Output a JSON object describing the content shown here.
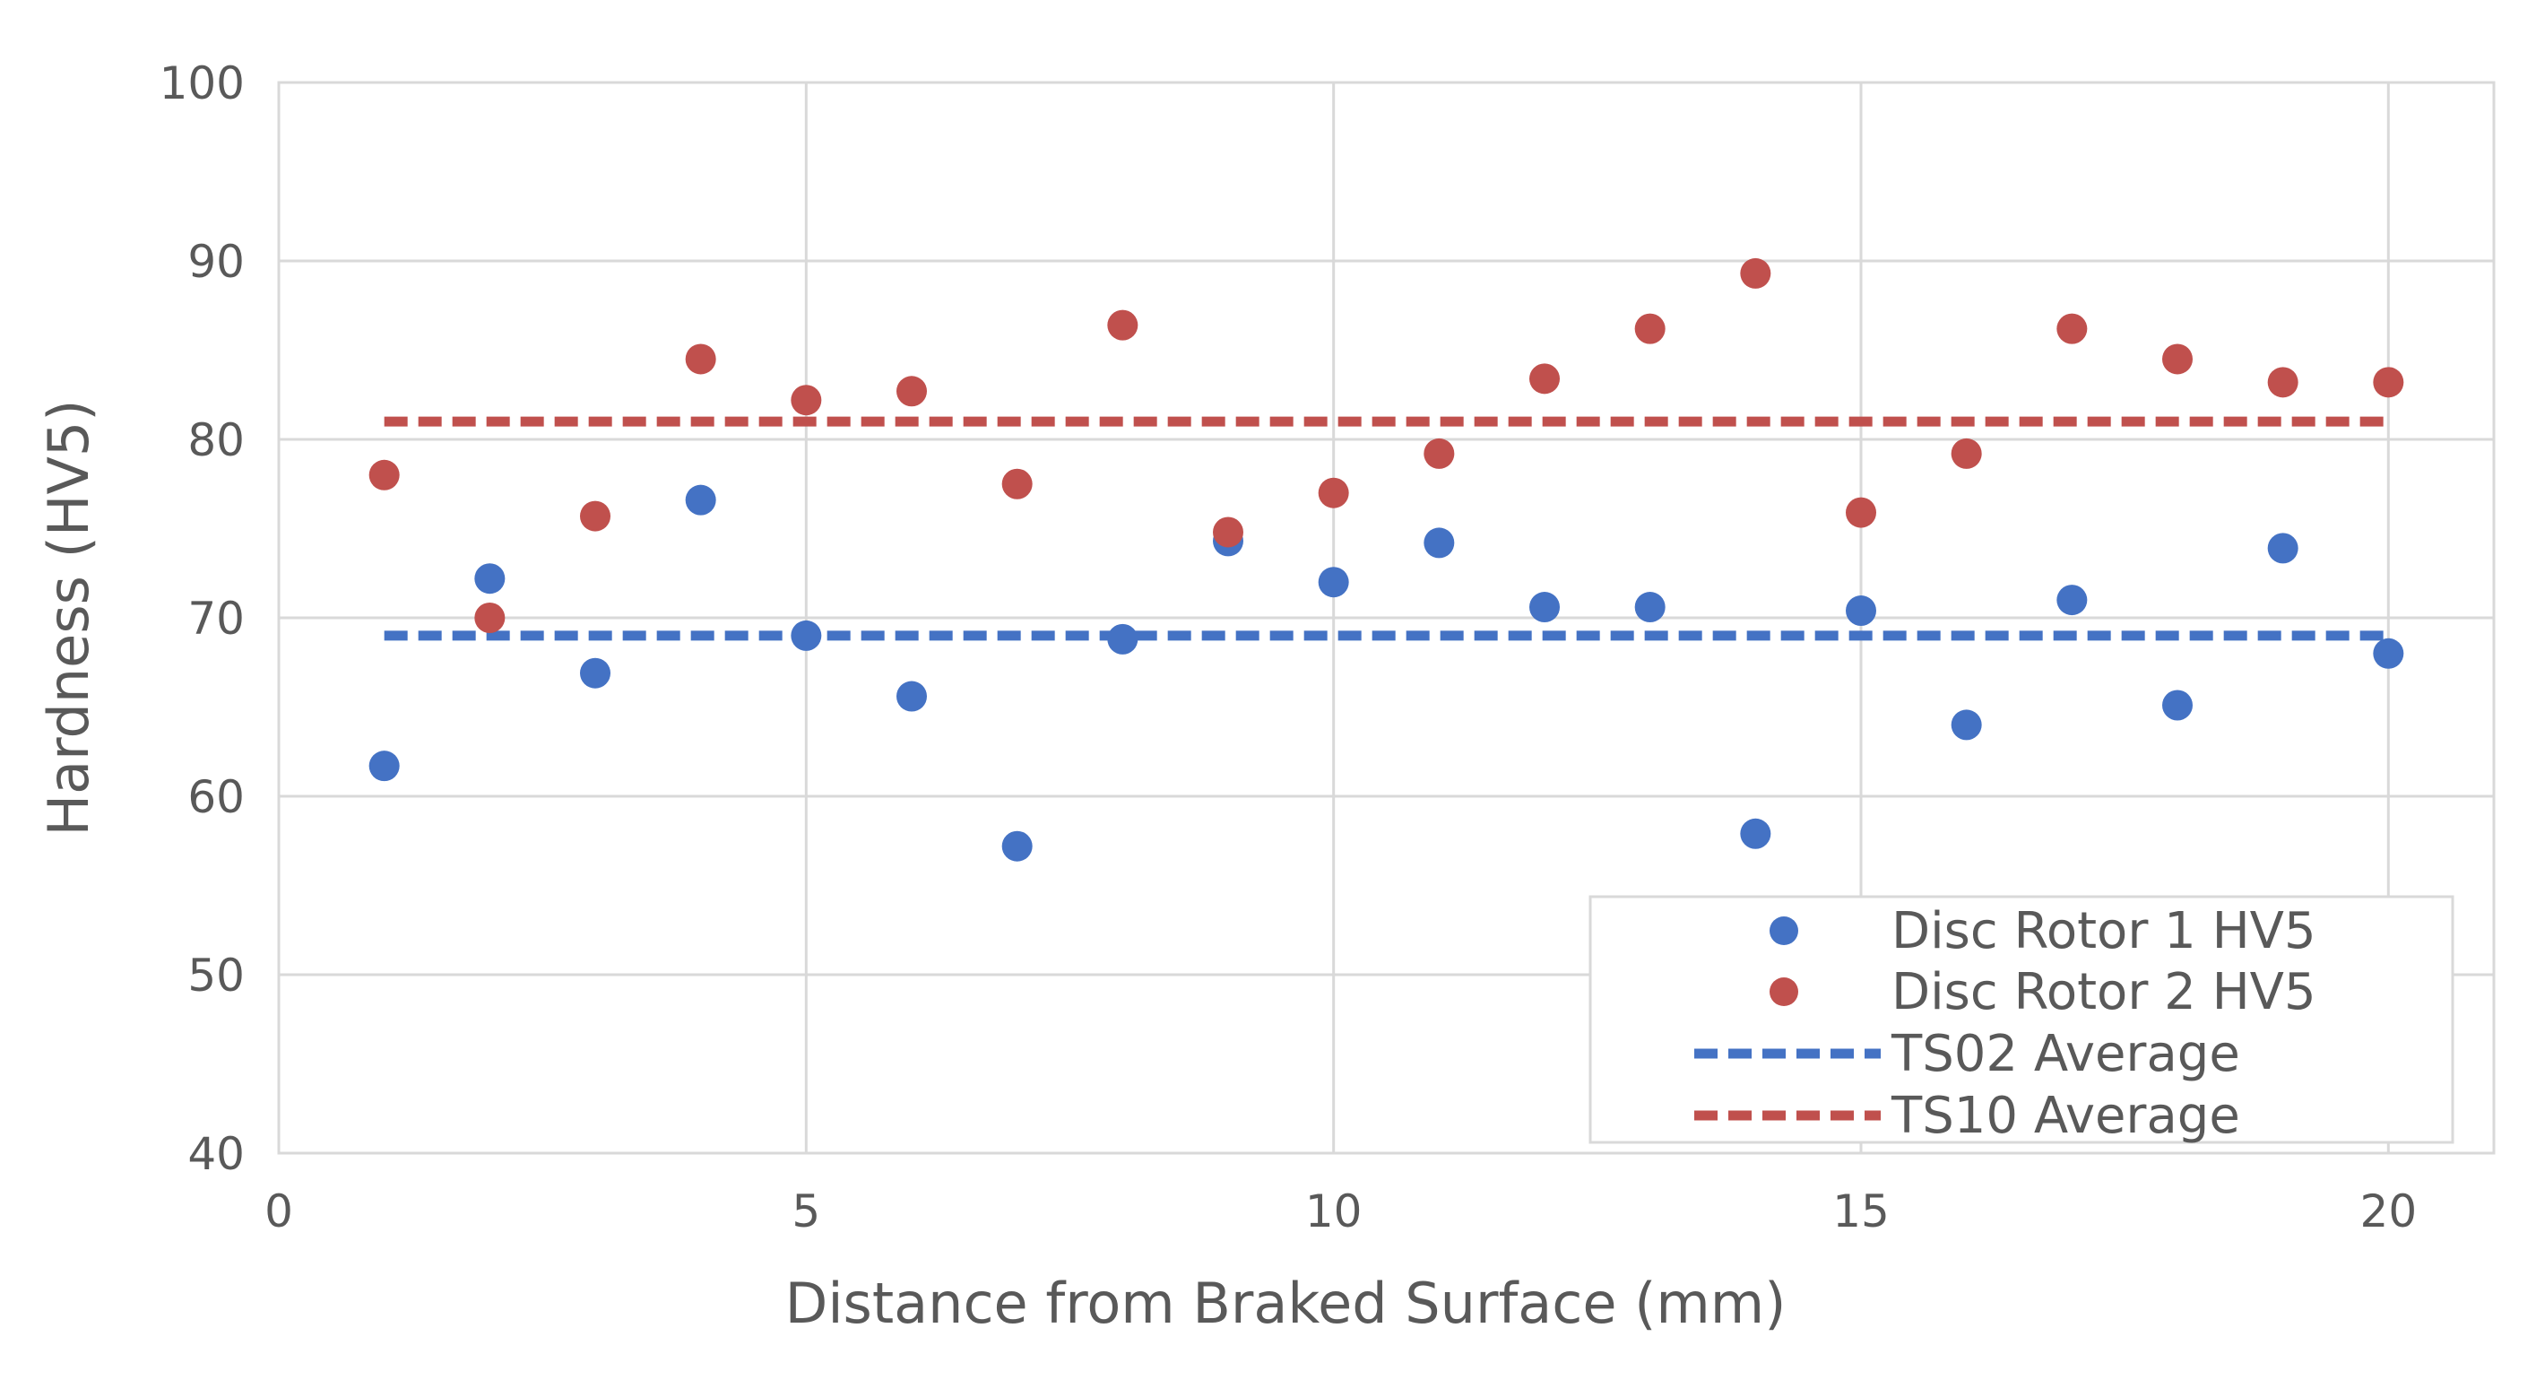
{
  "chart_data": {
    "type": "scatter",
    "title": "",
    "xlabel": "Distance from Braked Surface (mm)",
    "ylabel": "Hardness (HV5)",
    "xlim": [
      0,
      21
    ],
    "ylim": [
      40,
      100
    ],
    "x_ticks": [
      0,
      5,
      10,
      15,
      20
    ],
    "y_ticks": [
      40,
      50,
      60,
      70,
      80,
      90,
      100
    ],
    "grid": true,
    "legend_position": "bottom-right",
    "series": [
      {
        "name": "Disc Rotor 1 HV5",
        "kind": "scatter",
        "color": "#4472c4",
        "x": [
          1,
          2,
          3,
          4,
          5,
          6,
          7,
          8,
          9,
          10,
          11,
          12,
          13,
          14,
          15,
          16,
          17,
          18,
          19,
          20
        ],
        "y": [
          61.7,
          72.2,
          66.9,
          76.6,
          69.0,
          65.6,
          57.2,
          68.8,
          74.3,
          72.0,
          74.2,
          70.6,
          70.6,
          57.9,
          70.4,
          64.0,
          71.0,
          65.1,
          73.9,
          68.0
        ]
      },
      {
        "name": "Disc Rotor 2 HV5",
        "kind": "scatter",
        "color": "#c0504d",
        "x": [
          1,
          2,
          3,
          4,
          5,
          6,
          7,
          8,
          9,
          10,
          11,
          12,
          13,
          14,
          15,
          16,
          17,
          18,
          19,
          20
        ],
        "y": [
          78.0,
          70.0,
          75.7,
          84.5,
          82.2,
          82.7,
          77.5,
          86.4,
          74.8,
          77.0,
          79.2,
          83.4,
          86.2,
          89.3,
          75.9,
          79.2,
          86.2,
          84.5,
          83.2,
          83.2
        ]
      },
      {
        "name": "TS02 Average",
        "kind": "dashed-line",
        "color": "#4472c4",
        "x": [
          1,
          20
        ],
        "y": [
          69.0,
          69.0
        ]
      },
      {
        "name": "TS10 Average",
        "kind": "dashed-line",
        "color": "#c0504d",
        "x": [
          1,
          20
        ],
        "y": [
          81.0,
          81.0
        ]
      }
    ]
  }
}
